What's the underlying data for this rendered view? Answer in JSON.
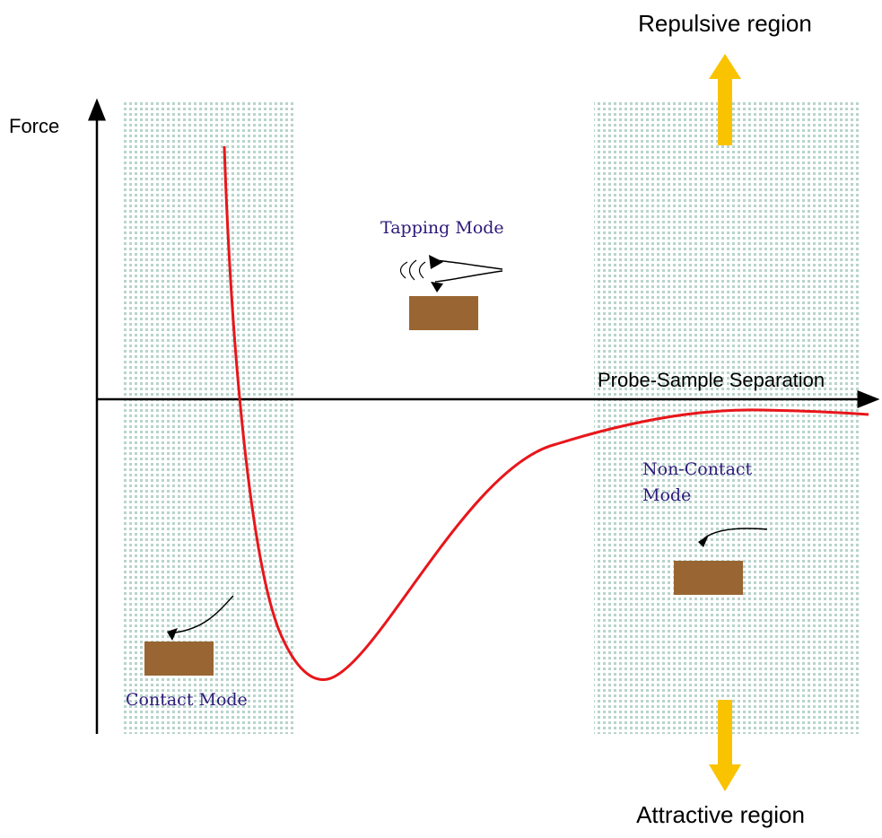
{
  "axes": {
    "y_label": "Force",
    "x_label": "Probe-Sample Separation"
  },
  "regions": {
    "repulsive": "Repulsive region",
    "attractive": "Attractive region"
  },
  "modes": {
    "tapping": "Tapping Mode",
    "non_contact": [
      "Non-Contact",
      "Mode"
    ],
    "contact": "Contact Mode"
  }
}
